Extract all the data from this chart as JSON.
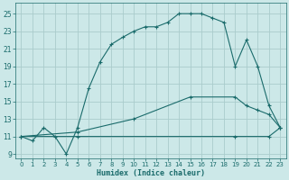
{
  "xlabel": "Humidex (Indice chaleur)",
  "bg_color": "#cce8e8",
  "grid_color": "#aacccc",
  "line_color": "#1a6b6b",
  "xlim": [
    -0.5,
    23.5
  ],
  "ylim": [
    8.5,
    26.2
  ],
  "xticks": [
    0,
    1,
    2,
    3,
    4,
    5,
    6,
    7,
    8,
    9,
    10,
    11,
    12,
    13,
    14,
    15,
    16,
    17,
    18,
    19,
    20,
    21,
    22,
    23
  ],
  "yticks": [
    9,
    11,
    13,
    15,
    17,
    19,
    21,
    23,
    25
  ],
  "curve1_x": [
    0,
    1,
    2,
    3,
    4,
    5,
    6,
    7,
    8,
    9,
    10,
    11,
    12,
    13,
    14,
    15,
    16,
    17,
    18,
    19,
    20,
    21,
    22,
    23
  ],
  "curve1_y": [
    11,
    10.5,
    12,
    11,
    9,
    12,
    16.5,
    19.5,
    21.5,
    22.3,
    23.0,
    23.5,
    23.5,
    24.0,
    25.0,
    25.0,
    25.0,
    24.5,
    24.0,
    19.0,
    22.0,
    19.0,
    14.5,
    12.0
  ],
  "curve2_x": [
    0,
    5,
    19,
    22,
    23
  ],
  "curve2_y": [
    11,
    11,
    11,
    11,
    12
  ],
  "curve3_x": [
    0,
    5,
    10,
    15,
    19,
    20,
    21,
    22,
    23
  ],
  "curve3_y": [
    11,
    11.5,
    13.0,
    15.5,
    15.5,
    14.5,
    14.0,
    13.5,
    12.0
  ]
}
